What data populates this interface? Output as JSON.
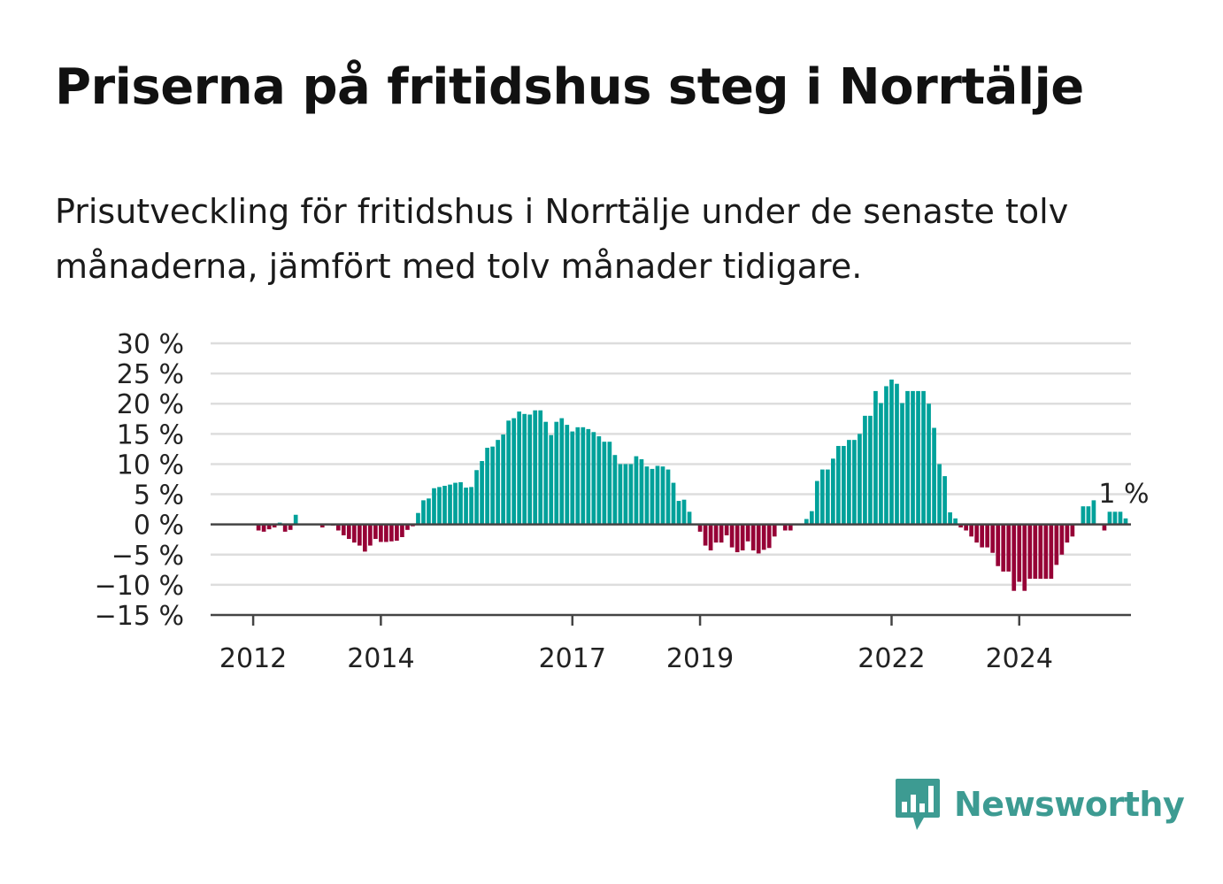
{
  "title": "Priserna på fritidshus steg i Norrtälje",
  "subtitle": "Prisutveckling för fritidshus i Norrtälje under de senaste tolv månaderna, jämfört med tolv månader tidigare.",
  "logo": {
    "text": "Newsworthy",
    "icon": "newsworthy-bar-chart-icon",
    "color": "#3d9b92"
  },
  "colors": {
    "positive": "#00a19a",
    "negative": "#960036",
    "grid": "#dddddd",
    "axis": "#444444"
  },
  "chart_data": {
    "type": "bar",
    "title": "",
    "xlabel": "",
    "ylabel": "",
    "unit": "%",
    "ylim": [
      -15,
      30
    ],
    "yticks": [
      30,
      25,
      20,
      15,
      10,
      5,
      0,
      -5,
      -10,
      -15
    ],
    "ytick_labels": [
      "30 %",
      "25 %",
      "20 %",
      "15 %",
      "10 %",
      "5 %",
      "0 %",
      "−5 %",
      "−10 %",
      "−15 %"
    ],
    "xlim": [
      "2011-05",
      "2025-10"
    ],
    "xticks": [
      "2012",
      "2014",
      "2017",
      "2019",
      "2022",
      "2024"
    ],
    "grid": true,
    "last_value_label": "1 %",
    "start": "2012-01",
    "frequency": "monthly",
    "values": [
      0,
      -1,
      -1.2,
      -0.8,
      -0.5,
      0.3,
      -1.2,
      -0.9,
      1.6,
      0,
      0,
      0,
      0,
      -0.5,
      0,
      -0.2,
      -1,
      -1.8,
      -2.4,
      -3,
      -3.5,
      -4.5,
      -3.5,
      -2.4,
      -2.9,
      -2.9,
      -2.8,
      -2.7,
      -2.1,
      -0.9,
      -0.3,
      1.9,
      4,
      4.3,
      6,
      6.2,
      6.4,
      6.6,
      6.9,
      7,
      6.1,
      6.2,
      9,
      10.5,
      12.7,
      12.9,
      14,
      14.9,
      17.2,
      17.6,
      18.7,
      18.3,
      18.2,
      18.9,
      18.9,
      17,
      14.8,
      17,
      17.6,
      16.5,
      15.4,
      16.1,
      16.1,
      15.8,
      15.3,
      14.6,
      13.7,
      13.7,
      11.5,
      10,
      10,
      10,
      11.3,
      10.8,
      9.6,
      9.2,
      9.7,
      9.6,
      9.1,
      6.9,
      3.9,
      4.1,
      2.1,
      0,
      -1.2,
      -3.5,
      -4.3,
      -3,
      -3,
      -1.8,
      -3.8,
      -4.6,
      -4.3,
      -2.8,
      -4.3,
      -4.8,
      -4.2,
      -3.9,
      -2,
      0,
      -1,
      -1,
      0,
      0,
      0.9,
      2.2,
      7.2,
      9.1,
      9.1,
      10.9,
      13,
      13,
      14,
      14,
      15,
      18,
      18,
      22.1,
      20.1,
      22.9,
      24,
      23.3,
      20.1,
      22.1,
      22.1,
      22.1,
      22.1,
      20,
      16,
      10,
      8,
      2,
      1,
      -0.5,
      -1,
      -2,
      -3,
      -3.8,
      -3.8,
      -4.7,
      -6.9,
      -7.8,
      -7.8,
      -11,
      -9.5,
      -11,
      -9,
      -9,
      -9,
      -9,
      -9,
      -6.7,
      -5,
      -3,
      -2,
      0,
      3,
      3,
      4,
      0,
      -1,
      2.1,
      2.1,
      2.1,
      1
    ]
  }
}
